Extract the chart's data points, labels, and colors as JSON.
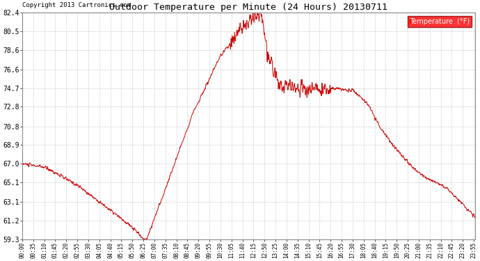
{
  "title": "Outdoor Temperature per Minute (24 Hours) 20130711",
  "copyright": "Copyright 2013 Cartronics.com",
  "legend_label": "Temperature  (°F)",
  "line_color": "#cc0000",
  "bg_color": "#ffffff",
  "grid_color": "#cccccc",
  "yticks": [
    59.3,
    61.2,
    63.1,
    65.1,
    67.0,
    68.9,
    70.8,
    72.8,
    74.7,
    76.6,
    78.6,
    80.5,
    82.4
  ],
  "ylim": [
    59.3,
    82.4
  ],
  "total_minutes": 1440
}
